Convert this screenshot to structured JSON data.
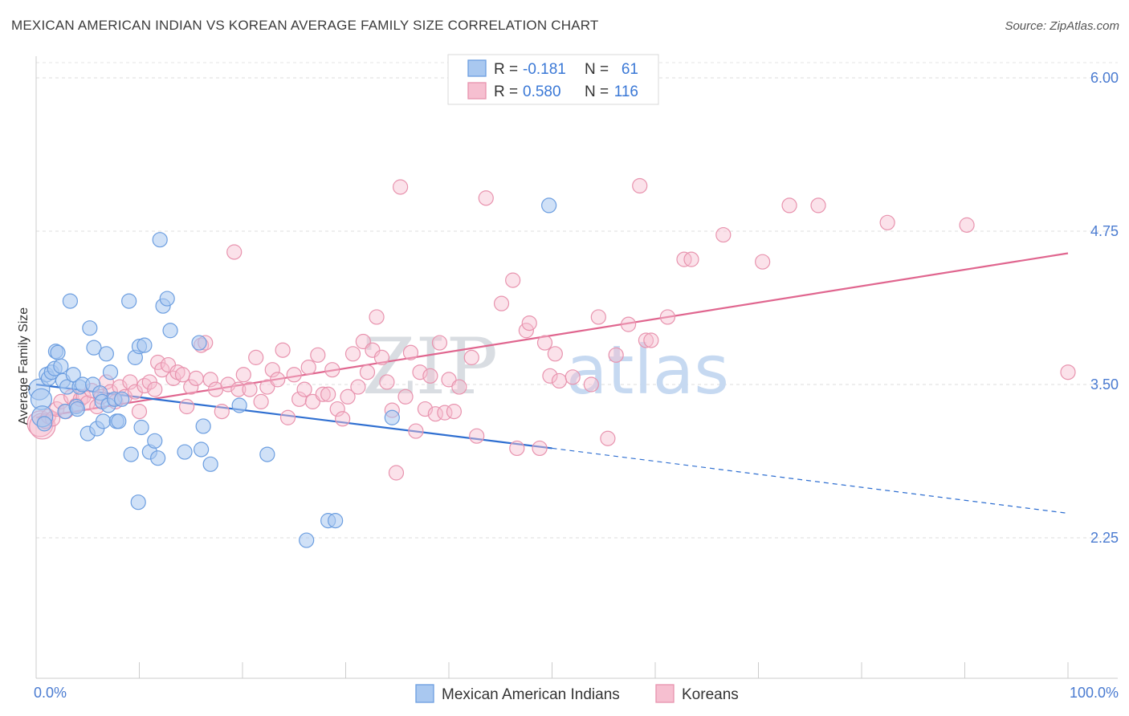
{
  "header": {
    "title": "MEXICAN AMERICAN INDIAN VS KOREAN AVERAGE FAMILY SIZE CORRELATION CHART",
    "source": "Source: ZipAtlas.com"
  },
  "watermark": {
    "part1": "ZIP",
    "part2": "atlas"
  },
  "colors": {
    "blue_fill": "#a9c8f0",
    "blue_stroke": "#6c9ee0",
    "blue_line": "#2f6fd1",
    "pink_fill": "#f6bfd0",
    "pink_stroke": "#e893ae",
    "pink_line": "#e0668f",
    "accent_text": "#3a78d6"
  },
  "legend": {
    "r_label": "R =",
    "n_label": "N =",
    "rows": [
      {
        "r": "-0.181",
        "n": "61"
      },
      {
        "r": "0.580",
        "n": "116"
      }
    ]
  },
  "chart_data": {
    "type": "scatter",
    "title": "MEXICAN AMERICAN INDIAN VS KOREAN AVERAGE FAMILY SIZE CORRELATION CHART",
    "xlabel": "",
    "ylabel": "Average Family Size",
    "xlim": [
      0,
      100
    ],
    "ylim": [
      1.0,
      6.15
    ],
    "y_ticks": [
      2.25,
      3.5,
      4.75,
      6.0
    ],
    "y_tick_labels": [
      "2.25",
      "3.50",
      "4.75",
      "6.00"
    ],
    "x_tick_labels": [
      "0.0%",
      "100.0%"
    ],
    "grid": "horizontal dashed",
    "legend_position": "top-center",
    "series": [
      {
        "name": "Mexican American Indians",
        "color": "#a9c8f0",
        "r": -0.181,
        "n": 61,
        "trend": {
          "x0": 0,
          "y0": 3.5,
          "x_solid_end": 50,
          "y_solid_end": 2.98,
          "x1": 100,
          "y1": 2.45
        },
        "points": [
          [
            0.3,
            3.46
          ],
          [
            0.5,
            3.38
          ],
          [
            0.6,
            3.24
          ],
          [
            0.8,
            3.18
          ],
          [
            1.0,
            3.58
          ],
          [
            1.2,
            3.55
          ],
          [
            1.5,
            3.6
          ],
          [
            1.8,
            3.63
          ],
          [
            1.9,
            3.77
          ],
          [
            2.1,
            3.76
          ],
          [
            2.4,
            3.65
          ],
          [
            2.6,
            3.53
          ],
          [
            2.8,
            3.28
          ],
          [
            3.0,
            3.48
          ],
          [
            3.3,
            4.18
          ],
          [
            3.6,
            3.58
          ],
          [
            3.9,
            3.32
          ],
          [
            4.0,
            3.3
          ],
          [
            4.2,
            3.48
          ],
          [
            4.5,
            3.5
          ],
          [
            5.0,
            3.1
          ],
          [
            5.2,
            3.96
          ],
          [
            5.5,
            3.5
          ],
          [
            5.6,
            3.8
          ],
          [
            5.9,
            3.14
          ],
          [
            6.2,
            3.43
          ],
          [
            6.4,
            3.36
          ],
          [
            6.5,
            3.2
          ],
          [
            6.8,
            3.75
          ],
          [
            7.0,
            3.33
          ],
          [
            7.2,
            3.6
          ],
          [
            7.6,
            3.38
          ],
          [
            7.8,
            3.2
          ],
          [
            8.0,
            3.2
          ],
          [
            8.3,
            3.38
          ],
          [
            9.0,
            4.18
          ],
          [
            9.2,
            2.93
          ],
          [
            9.6,
            3.72
          ],
          [
            9.9,
            2.54
          ],
          [
            10.0,
            3.81
          ],
          [
            10.2,
            3.15
          ],
          [
            10.5,
            3.82
          ],
          [
            11.0,
            2.95
          ],
          [
            11.5,
            3.04
          ],
          [
            11.8,
            2.9
          ],
          [
            12.0,
            4.68
          ],
          [
            12.3,
            4.14
          ],
          [
            12.7,
            4.2
          ],
          [
            13.0,
            3.94
          ],
          [
            14.4,
            2.95
          ],
          [
            15.8,
            3.84
          ],
          [
            16.0,
            2.97
          ],
          [
            16.2,
            3.16
          ],
          [
            16.9,
            2.85
          ],
          [
            19.7,
            3.33
          ],
          [
            22.4,
            2.93
          ],
          [
            26.2,
            2.23
          ],
          [
            28.3,
            2.39
          ],
          [
            29.0,
            2.39
          ],
          [
            34.5,
            3.23
          ],
          [
            49.7,
            4.96
          ]
        ]
      },
      {
        "name": "Koreans",
        "color": "#f6bfd0",
        "r": 0.58,
        "n": 116,
        "trend": {
          "x0": 0,
          "y0": 3.23,
          "x1": 100,
          "y1": 4.57
        },
        "points": [
          [
            0.4,
            3.18
          ],
          [
            0.6,
            3.16
          ],
          [
            0.9,
            3.2
          ],
          [
            1.2,
            3.24
          ],
          [
            1.6,
            3.22
          ],
          [
            2.0,
            3.3
          ],
          [
            2.4,
            3.36
          ],
          [
            2.9,
            3.28
          ],
          [
            3.4,
            3.4
          ],
          [
            3.9,
            3.33
          ],
          [
            4.3,
            3.38
          ],
          [
            4.6,
            3.4
          ],
          [
            5.0,
            3.35
          ],
          [
            5.4,
            3.45
          ],
          [
            5.9,
            3.32
          ],
          [
            6.3,
            3.4
          ],
          [
            6.8,
            3.52
          ],
          [
            7.2,
            3.44
          ],
          [
            7.7,
            3.36
          ],
          [
            8.1,
            3.48
          ],
          [
            8.6,
            3.4
          ],
          [
            9.1,
            3.52
          ],
          [
            9.6,
            3.44
          ],
          [
            10.0,
            3.28
          ],
          [
            10.5,
            3.49
          ],
          [
            11.0,
            3.52
          ],
          [
            11.5,
            3.46
          ],
          [
            11.8,
            3.68
          ],
          [
            12.2,
            3.62
          ],
          [
            12.8,
            3.66
          ],
          [
            13.3,
            3.55
          ],
          [
            13.7,
            3.6
          ],
          [
            14.2,
            3.58
          ],
          [
            14.6,
            3.32
          ],
          [
            15.0,
            3.48
          ],
          [
            15.5,
            3.55
          ],
          [
            16.0,
            3.82
          ],
          [
            16.4,
            3.84
          ],
          [
            16.9,
            3.54
          ],
          [
            17.4,
            3.46
          ],
          [
            18.0,
            3.28
          ],
          [
            18.6,
            3.5
          ],
          [
            19.2,
            4.58
          ],
          [
            19.6,
            3.46
          ],
          [
            20.1,
            3.58
          ],
          [
            20.7,
            3.46
          ],
          [
            21.3,
            3.72
          ],
          [
            21.8,
            3.36
          ],
          [
            22.4,
            3.48
          ],
          [
            22.9,
            3.62
          ],
          [
            23.4,
            3.54
          ],
          [
            23.9,
            3.78
          ],
          [
            24.4,
            3.23
          ],
          [
            25.0,
            3.58
          ],
          [
            25.5,
            3.38
          ],
          [
            26.0,
            3.46
          ],
          [
            26.4,
            3.64
          ],
          [
            26.8,
            3.36
          ],
          [
            27.3,
            3.74
          ],
          [
            27.8,
            3.42
          ],
          [
            28.3,
            3.42
          ],
          [
            28.7,
            3.62
          ],
          [
            29.2,
            3.3
          ],
          [
            29.7,
            3.22
          ],
          [
            30.2,
            3.4
          ],
          [
            30.7,
            3.75
          ],
          [
            31.2,
            3.48
          ],
          [
            31.7,
            3.85
          ],
          [
            32.1,
            3.6
          ],
          [
            32.6,
            3.78
          ],
          [
            33.0,
            4.05
          ],
          [
            33.5,
            3.72
          ],
          [
            34.0,
            3.52
          ],
          [
            34.5,
            3.29
          ],
          [
            34.9,
            2.78
          ],
          [
            35.3,
            5.11
          ],
          [
            35.8,
            3.4
          ],
          [
            36.3,
            3.76
          ],
          [
            36.8,
            3.12
          ],
          [
            37.2,
            3.6
          ],
          [
            37.7,
            3.3
          ],
          [
            38.2,
            3.57
          ],
          [
            38.7,
            3.26
          ],
          [
            39.1,
            3.84
          ],
          [
            39.6,
            3.27
          ],
          [
            40.0,
            3.54
          ],
          [
            40.5,
            3.28
          ],
          [
            41.0,
            3.48
          ],
          [
            42.2,
            3.72
          ],
          [
            42.7,
            3.08
          ],
          [
            43.6,
            5.02
          ],
          [
            45.1,
            4.16
          ],
          [
            46.2,
            4.35
          ],
          [
            46.6,
            2.98
          ],
          [
            47.5,
            3.94
          ],
          [
            47.8,
            4.0
          ],
          [
            48.8,
            2.98
          ],
          [
            49.3,
            3.84
          ],
          [
            49.8,
            3.57
          ],
          [
            50.3,
            3.75
          ],
          [
            50.7,
            3.53
          ],
          [
            52.0,
            3.56
          ],
          [
            53.8,
            3.5
          ],
          [
            54.5,
            4.05
          ],
          [
            55.4,
            3.06
          ],
          [
            56.2,
            3.74
          ],
          [
            57.4,
            3.99
          ],
          [
            58.5,
            5.12
          ],
          [
            59.1,
            3.86
          ],
          [
            59.6,
            3.86
          ],
          [
            61.2,
            4.05
          ],
          [
            62.8,
            4.52
          ],
          [
            63.5,
            4.52
          ],
          [
            66.6,
            4.72
          ],
          [
            70.4,
            4.5
          ],
          [
            73.0,
            4.96
          ],
          [
            75.8,
            4.96
          ],
          [
            82.5,
            4.82
          ],
          [
            90.2,
            4.8
          ],
          [
            100.0,
            3.6
          ]
        ]
      }
    ]
  }
}
